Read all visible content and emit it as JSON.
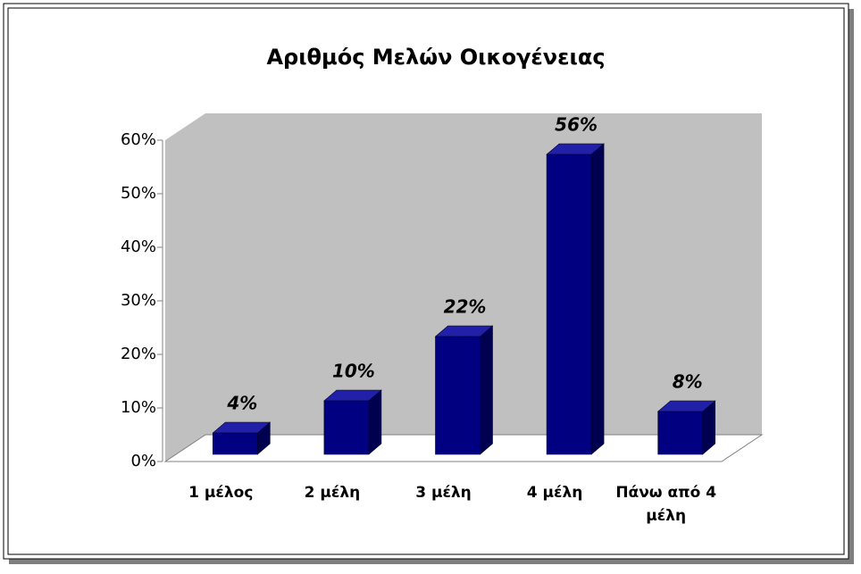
{
  "chart_data": {
    "type": "bar3d",
    "title": "Αριθμός Μελών Οικογένειας",
    "categories": [
      "1 μέλος",
      "2 μέλη",
      "3 μέλη",
      "4 μέλη",
      "Πάνω από 4 μέλη"
    ],
    "values": [
      4,
      10,
      22,
      56,
      8
    ],
    "value_labels": [
      "4%",
      "10%",
      "22%",
      "56%",
      "8%"
    ],
    "color": "#000080",
    "ylim": [
      0,
      60
    ],
    "yticks": [
      {
        "value": 0,
        "label": "0%"
      },
      {
        "value": 10,
        "label": "10%"
      },
      {
        "value": 20,
        "label": "20%"
      },
      {
        "value": 30,
        "label": "30%"
      },
      {
        "value": 40,
        "label": "40%"
      },
      {
        "value": 50,
        "label": "50%"
      },
      {
        "value": 60,
        "label": "60%"
      }
    ],
    "grid": false
  }
}
